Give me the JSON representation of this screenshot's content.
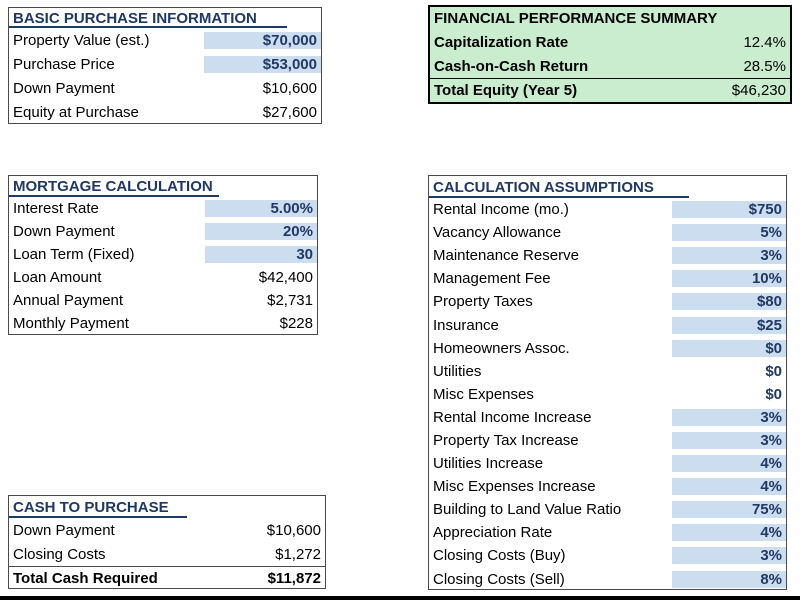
{
  "colors": {
    "input_highlight_blue": "#cdddf0",
    "summary_green": "#caedcf",
    "heading_navy": "#1f3864"
  },
  "sections": {
    "basic": {
      "title": "BASIC PURCHASE INFORMATION",
      "rows": [
        {
          "label": "Property Value (est.)",
          "value": "$70,000",
          "fill": true
        },
        {
          "label": "Purchase Price",
          "value": "$53,000",
          "fill": true
        },
        {
          "label": "Down Payment",
          "value": "$10,600",
          "fill": false
        },
        {
          "label": "Equity at Purchase",
          "value": "$27,600",
          "fill": false
        }
      ]
    },
    "summary": {
      "title": "FINANCIAL PERFORMANCE SUMMARY",
      "rows": [
        {
          "label": "Capitalization Rate",
          "value": "12.4%"
        },
        {
          "label": "Cash-on-Cash Return",
          "value": "28.5%"
        },
        {
          "label": "Total Equity (Year 5)",
          "value": "$46,230",
          "total": true
        }
      ]
    },
    "mortgage": {
      "title": "MORTGAGE CALCULATION",
      "rows": [
        {
          "label": "Interest Rate",
          "value": "5.00%",
          "fill": true
        },
        {
          "label": "Down Payment",
          "value": "20%",
          "fill": true
        },
        {
          "label": "Loan Term (Fixed)",
          "value": "30",
          "fill": true
        },
        {
          "label": "Loan Amount",
          "value": "$42,400",
          "fill": false
        },
        {
          "label": "Annual Payment",
          "value": "$2,731",
          "fill": false
        },
        {
          "label": "Monthly Payment",
          "value": "$228",
          "fill": false
        }
      ]
    },
    "assumptions": {
      "title": "CALCULATION ASSUMPTIONS",
      "rows": [
        {
          "label": "Rental Income (mo.)",
          "value": "$750",
          "fill": true
        },
        {
          "label": "Vacancy Allowance",
          "value": "5%",
          "fill": true
        },
        {
          "label": "Maintenance Reserve",
          "value": "3%",
          "fill": true
        },
        {
          "label": "Management Fee",
          "value": "10%",
          "fill": true
        },
        {
          "label": "Property Taxes",
          "value": "$80",
          "fill": true
        },
        {
          "label": "Insurance",
          "value": "$25",
          "fill": true
        },
        {
          "label": "Homeowners Assoc.",
          "value": "$0",
          "fill": true
        },
        {
          "label": "Utilities",
          "value": "$0",
          "fill": false
        },
        {
          "label": "Misc Expenses",
          "value": "$0",
          "fill": false
        },
        {
          "label": "Rental Income Increase",
          "value": "3%",
          "fill": true
        },
        {
          "label": "Property Tax Increase",
          "value": "3%",
          "fill": true
        },
        {
          "label": "Utilities Increase",
          "value": "4%",
          "fill": true
        },
        {
          "label": "Misc Expenses Increase",
          "value": "4%",
          "fill": true
        },
        {
          "label": "Building to Land Value Ratio",
          "value": "75%",
          "fill": true
        },
        {
          "label": "Appreciation Rate",
          "value": "4%",
          "fill": true
        },
        {
          "label": "Closing Costs (Buy)",
          "value": "3%",
          "fill": true
        },
        {
          "label": "Closing Costs (Sell)",
          "value": "8%",
          "fill": true
        }
      ]
    },
    "cash": {
      "title": "CASH TO PURCHASE",
      "rows": [
        {
          "label": "Down Payment",
          "value": "$10,600"
        },
        {
          "label": "Closing Costs",
          "value": "$1,272"
        },
        {
          "label": "Total Cash Required",
          "value": "$11,872",
          "total": true
        }
      ]
    }
  }
}
